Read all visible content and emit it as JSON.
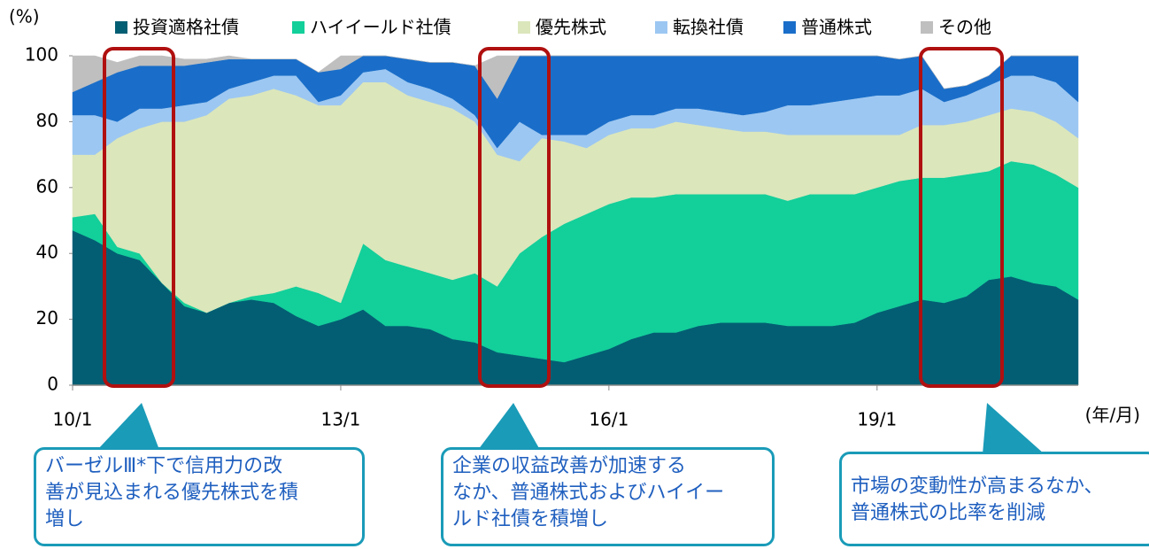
{
  "chart_data": {
    "type": "stacked_area",
    "y_label": "(%)",
    "x_label": "(年/月)",
    "categories": [
      "10/1",
      null,
      null,
      null,
      null,
      null,
      null,
      null,
      null,
      null,
      null,
      null,
      "13/1",
      null,
      null,
      null,
      null,
      null,
      null,
      null,
      null,
      null,
      null,
      null,
      "16/1",
      null,
      null,
      null,
      null,
      null,
      null,
      null,
      null,
      null,
      null,
      null,
      "19/1",
      null,
      null,
      null,
      null,
      null,
      null,
      null,
      null,
      null
    ],
    "ylim": [
      0,
      100
    ],
    "yticks": [
      0,
      20,
      40,
      60,
      80,
      100
    ],
    "series": [
      {
        "name": "投資適格社債",
        "color": "#035e73",
        "values": [
          47,
          44,
          40,
          38,
          31,
          24,
          22,
          25,
          26,
          25,
          21,
          18,
          20,
          23,
          18,
          18,
          17,
          14,
          13,
          10,
          9,
          8,
          7,
          9,
          11,
          14,
          16,
          16,
          18,
          19,
          19,
          19,
          18,
          18,
          18,
          19,
          22,
          24,
          26,
          25,
          27,
          32,
          33,
          31,
          30,
          26
        ]
      },
      {
        "name": "ハイイールド社債",
        "color": "#13cf9a",
        "values": [
          4,
          8,
          2,
          2,
          0,
          1,
          0,
          0,
          1,
          3,
          9,
          10,
          5,
          20,
          20,
          18,
          17,
          18,
          21,
          20,
          31,
          37,
          42,
          43,
          44,
          43,
          41,
          42,
          40,
          39,
          39,
          39,
          38,
          40,
          40,
          39,
          38,
          38,
          37,
          38,
          37,
          33,
          35,
          36,
          34,
          34
        ]
      },
      {
        "name": "優先株式",
        "color": "#dbe6bb",
        "values": [
          19,
          18,
          33,
          38,
          49,
          55,
          60,
          62,
          61,
          62,
          58,
          57,
          60,
          49,
          54,
          52,
          52,
          52,
          46,
          40,
          28,
          30,
          25,
          20,
          21,
          21,
          21,
          22,
          21,
          20,
          19,
          19,
          20,
          18,
          18,
          18,
          16,
          14,
          16,
          16,
          16,
          17,
          16,
          16,
          16,
          15
        ]
      },
      {
        "name": "転換社債",
        "color": "#9cc7f2",
        "values": [
          12,
          12,
          5,
          6,
          4,
          5,
          4,
          3,
          4,
          4,
          6,
          1,
          3,
          3,
          4,
          4,
          4,
          3,
          2,
          2,
          12,
          1,
          2,
          4,
          4,
          4,
          4,
          4,
          5,
          5,
          5,
          6,
          9,
          9,
          10,
          11,
          12,
          12,
          11,
          7,
          8,
          9,
          10,
          11,
          12,
          11
        ]
      },
      {
        "name": "普通株式",
        "color": "#1a6ec9",
        "values": [
          7,
          10,
          15,
          13,
          13,
          12,
          12,
          9,
          7,
          5,
          5,
          9,
          8,
          5,
          4,
          7,
          8,
          11,
          15,
          15,
          20,
          24,
          24,
          24,
          20,
          18,
          18,
          16,
          16,
          17,
          18,
          17,
          15,
          15,
          14,
          13,
          12,
          11,
          10,
          4,
          3,
          3,
          6,
          6,
          8,
          14
        ]
      },
      {
        "name": "その他",
        "color": "#bfbfbf",
        "values": [
          11,
          8,
          3,
          3,
          3,
          2,
          1,
          1,
          0,
          0,
          0,
          0,
          4,
          0,
          0,
          0,
          0,
          0,
          0,
          13,
          0,
          0,
          0,
          0,
          0,
          0,
          0,
          0,
          0,
          0,
          0,
          0,
          0,
          0,
          0,
          0,
          0,
          0,
          0,
          0,
          0,
          0,
          0,
          0,
          0,
          0
        ]
      }
    ],
    "annotations": [
      [
        "バーゼルⅢ*下で信用力の改",
        "善が見込まれる優先株式を積",
        "増し"
      ],
      [
        "企業の収益改善が加速する",
        "なか、普通株式およびハイイー",
        "ルド社債を積増し"
      ],
      [
        "市場の変動性が高まるなか、",
        "普通株式の比率を削減"
      ]
    ]
  }
}
